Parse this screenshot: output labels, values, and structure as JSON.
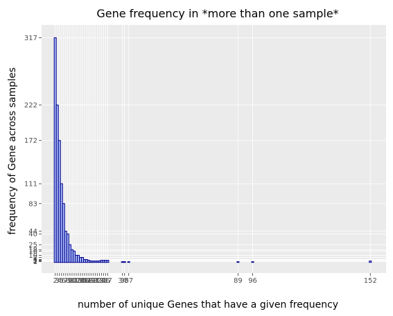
{
  "chart_data": {
    "type": "bar",
    "title": "Gene frequency in *more than one sample*",
    "xlabel": "number of unique Genes that have a given frequency",
    "ylabel": "frequency of Gene across samples",
    "x": [
      2,
      3,
      4,
      5,
      6,
      7,
      8,
      9,
      10,
      11,
      12,
      13,
      14,
      15,
      16,
      17,
      18,
      19,
      20,
      21,
      22,
      23,
      24,
      25,
      26,
      27,
      34,
      35,
      37,
      89,
      96,
      152
    ],
    "values": [
      317,
      222,
      172,
      111,
      83,
      44,
      40,
      25,
      18,
      16,
      10,
      10,
      7,
      7,
      4,
      4,
      3,
      2,
      2,
      2,
      2,
      2,
      3,
      3,
      3,
      3,
      1,
      1,
      1,
      1,
      1,
      2
    ],
    "x_tick_labels": [
      "2",
      "3",
      "4",
      "5",
      "6",
      "7",
      "8",
      "9",
      "10",
      "11",
      "12",
      "13",
      "14",
      "15",
      "16",
      "17",
      "18",
      "19",
      "20",
      "21",
      "22",
      "23",
      "24",
      "25",
      "26",
      "27",
      "34",
      "35",
      "37",
      "89",
      "96",
      "152"
    ],
    "y_tick_labels": [
      "1",
      "2",
      "3",
      "4",
      "7",
      "10",
      "16",
      "18",
      "25",
      "40",
      "44",
      "83",
      "111",
      "172",
      "222",
      "317"
    ],
    "xlim": [
      -4.5,
      159.5
    ],
    "ylim": [
      -15,
      335
    ],
    "grid": true,
    "colors": {
      "panel_background": "#ebebeb",
      "gridline": "#ffffff",
      "bar_fill": "#a6b8f5",
      "bar_outline": "#00008b"
    }
  }
}
